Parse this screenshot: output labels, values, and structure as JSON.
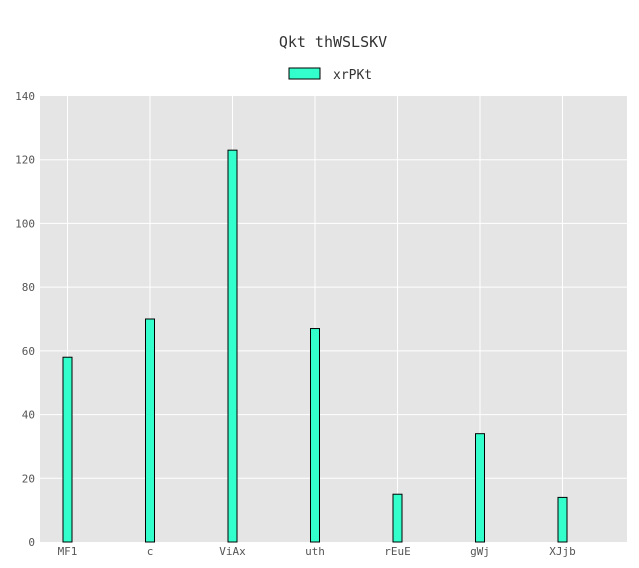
{
  "chart_data": {
    "type": "bar",
    "title": "Qkt thWSLSKV",
    "xlabel": "",
    "ylabel": "",
    "categories": [
      "MF1",
      "c",
      "ViAx",
      "uth",
      "rEuE",
      "gWj",
      "XJjb"
    ],
    "series": [
      {
        "name": "xrPKt",
        "values": [
          58,
          70,
          123,
          67,
          15,
          34,
          14
        ],
        "color": "#33ffcc"
      }
    ],
    "ylim": [
      0,
      140
    ],
    "yticks": [
      "0",
      "20",
      "40",
      "60",
      "80",
      "100",
      "120",
      "140"
    ],
    "grid": true,
    "legend_position": "top-center",
    "background": "#e5e5e5"
  }
}
